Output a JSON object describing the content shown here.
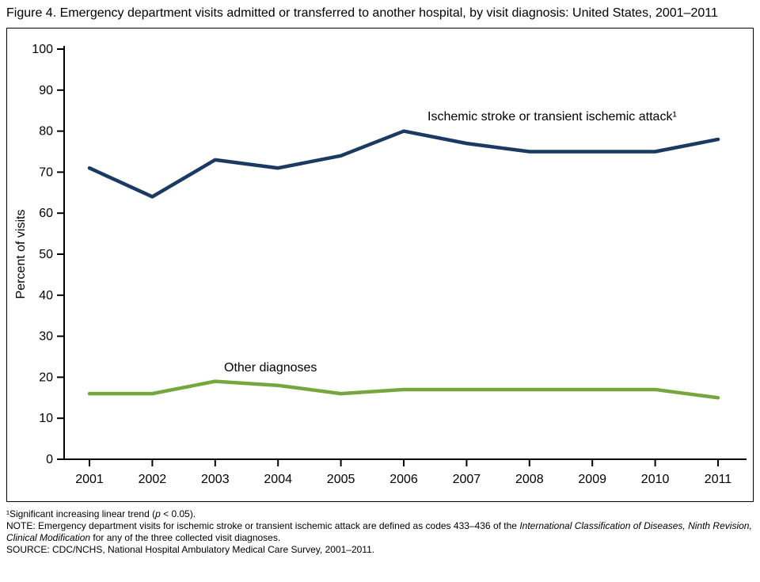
{
  "title": "Figure 4. Emergency department visits admitted or transferred to another hospital, by visit diagnosis: United States, 2001–2011",
  "chart_data": {
    "type": "line",
    "title": "",
    "x": [
      2001,
      2002,
      2003,
      2004,
      2005,
      2006,
      2007,
      2008,
      2009,
      2010,
      2011
    ],
    "xlabel": "",
    "ylabel": "Percent of visits",
    "ylim": [
      0,
      100
    ],
    "yticks": [
      0,
      10,
      20,
      30,
      40,
      50,
      60,
      70,
      80,
      90,
      100
    ],
    "grid": false,
    "legend_position": "inline-labels",
    "series": [
      {
        "name": "Ischemic stroke or transient ischemic attack¹",
        "color": "#1a3a64",
        "values": [
          71,
          64,
          73,
          71,
          74,
          80,
          77,
          75,
          75,
          75,
          78
        ]
      },
      {
        "name": "Other diagnoses",
        "color": "#76a73f",
        "values": [
          16,
          16,
          19,
          18,
          16,
          17,
          17,
          17,
          17,
          17,
          15
        ]
      }
    ]
  },
  "footnotes": {
    "sig_pre": "¹Significant increasing linear trend (",
    "sig_italic": "p",
    "sig_post": " < 0.05).",
    "note_pre": "NOTE: Emergency department visits for ischemic stroke or transient ischemic attack are defined as codes 433–436 of the ",
    "note_italic": "International Classification of Diseases, Ninth Revision, Clinical Modification",
    "note_post": " for any of the three collected visit diagnoses.",
    "source": "SOURCE: CDC/NCHS, National Hospital Ambulatory Medical Care Survey, 2001–2011."
  }
}
